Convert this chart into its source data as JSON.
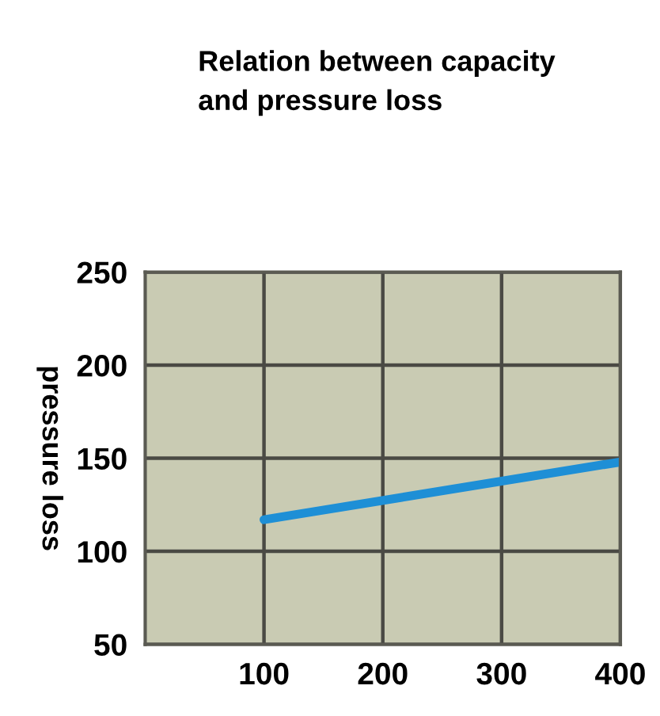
{
  "chart_data": {
    "type": "line",
    "title": "Relation between capacity\nand pressure loss",
    "ylabel": "pressure loss",
    "x": [
      100,
      400
    ],
    "series": [
      {
        "color": "#1e8fd6",
        "values": [
          117,
          148
        ]
      }
    ],
    "xlim": [
      0,
      400
    ],
    "ylim": [
      50,
      250
    ],
    "xticks": [
      100,
      200,
      300,
      400
    ],
    "yticks": [
      50,
      100,
      150,
      200,
      250
    ],
    "grid": true,
    "marker": "none",
    "line_style": "solid"
  }
}
